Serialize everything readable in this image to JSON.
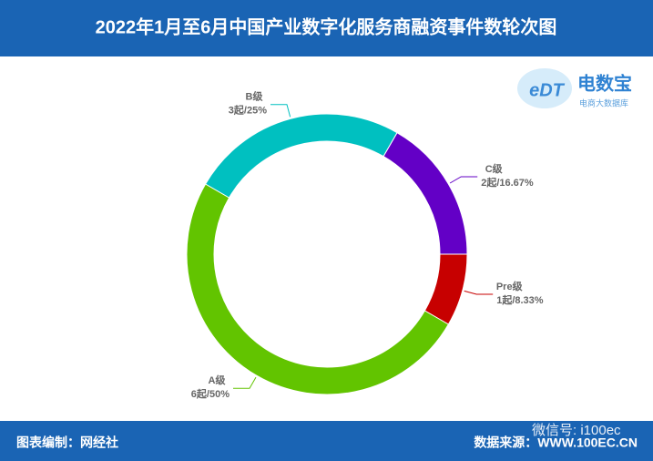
{
  "chart_data": {
    "type": "donut",
    "title": "2022年1月至6月中国产业数字化服务商融资事件数轮次图",
    "categories": [
      "C级",
      "Pre级",
      "A级",
      "B级"
    ],
    "values": [
      2,
      1,
      6,
      3
    ],
    "value_labels": [
      "2起/16.67%",
      "1起/8.33%",
      "6起/50%",
      "3起/25%"
    ],
    "colors": [
      "#6300c6",
      "#c70000",
      "#62c400",
      "#00c0c0"
    ]
  },
  "logo": {
    "name": "电数宝",
    "subtitle": "电商大数据库"
  },
  "footer": {
    "left": "图表编制：网经社",
    "right": "数据来源：WWW.100EC.CN",
    "watermark": "微信号: i100ec"
  }
}
